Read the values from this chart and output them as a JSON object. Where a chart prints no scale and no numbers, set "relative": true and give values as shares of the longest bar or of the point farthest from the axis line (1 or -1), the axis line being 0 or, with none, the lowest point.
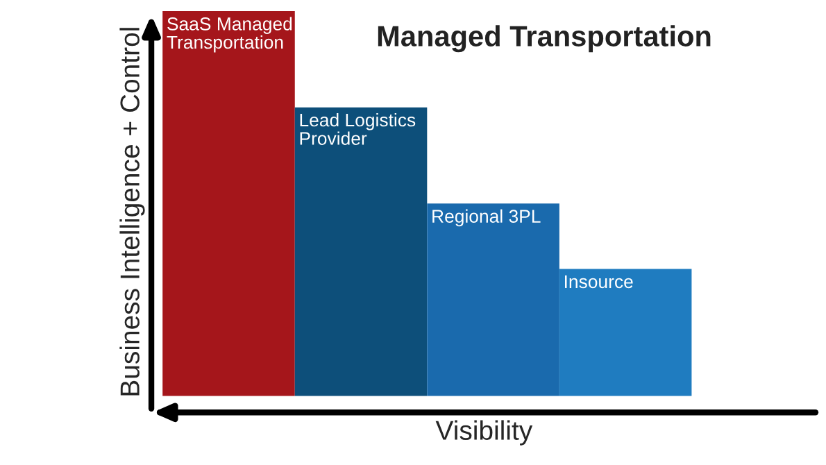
{
  "chart_data": {
    "type": "bar",
    "title": "Managed Transportation",
    "xlabel": "Visibility",
    "ylabel": "Business Intelligence + Control",
    "categories": [
      "SaaS Managed Transportation",
      "Lead Logistics Provider",
      "Regional 3PL",
      "Insource"
    ],
    "values": [
      1.0,
      0.75,
      0.5,
      0.33
    ],
    "colors": [
      "#a5161b",
      "#0d4f7a",
      "#1a6aad",
      "#1f7cc0"
    ],
    "relative": true,
    "legend": false
  }
}
